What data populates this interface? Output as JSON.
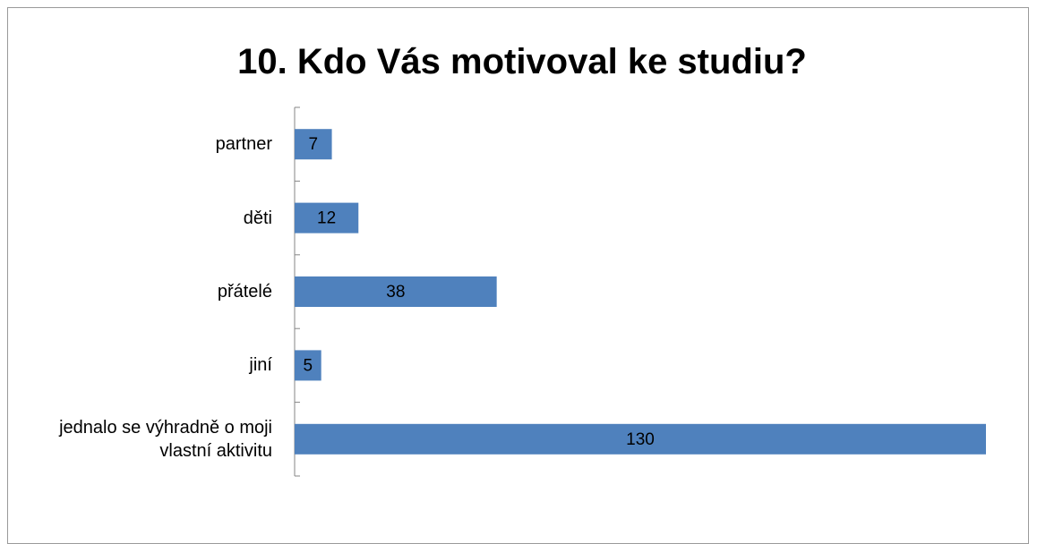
{
  "chart_data": {
    "type": "bar",
    "orientation": "horizontal",
    "title": "10. Kdo Vás motivoval ke studiu?",
    "categories": [
      "partner",
      "děti",
      "přátelé",
      "jiní",
      "jednalo se výhradně o moji vlastní aktivitu"
    ],
    "values": [
      7,
      12,
      38,
      5,
      130
    ],
    "color": "#4f81bd"
  }
}
